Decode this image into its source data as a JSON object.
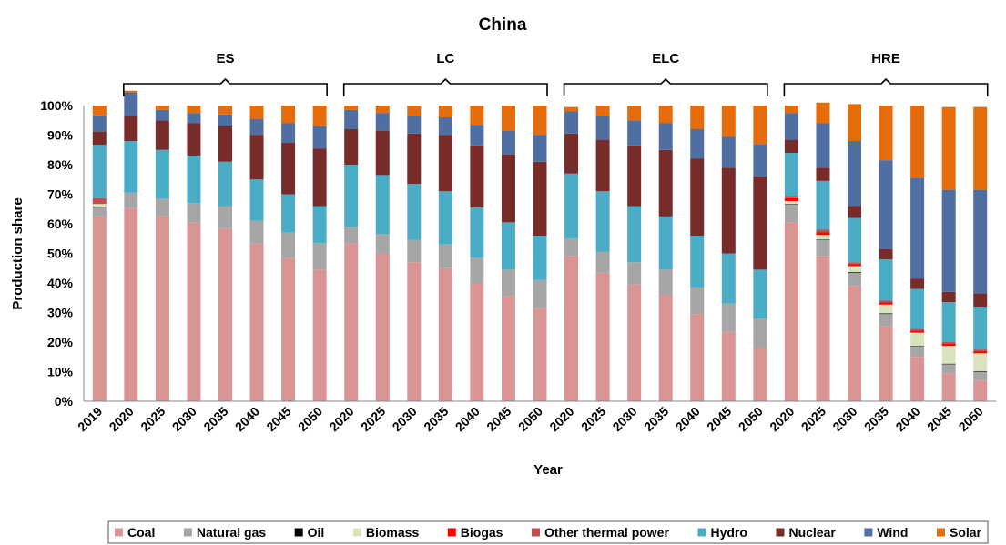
{
  "chart_data": {
    "type": "bar",
    "stacked": true,
    "title": "China",
    "xlabel": "Year",
    "ylabel": "Production share",
    "ylim": [
      0,
      100
    ],
    "yticks": [
      "0%",
      "10%",
      "20%",
      "30%",
      "40%",
      "50%",
      "60%",
      "70%",
      "80%",
      "90%",
      "100%"
    ],
    "grid": false,
    "legend_position": "bottom",
    "groups": [
      {
        "label": "ES",
        "start": 1,
        "end": 7
      },
      {
        "label": "LC",
        "start": 8,
        "end": 14
      },
      {
        "label": "ELC",
        "start": 15,
        "end": 21
      },
      {
        "label": "HRE",
        "start": 22,
        "end": 28
      }
    ],
    "categories": [
      "2019",
      "2020",
      "2025",
      "2030",
      "2035",
      "2040",
      "2045",
      "2050",
      "2020",
      "2025",
      "2030",
      "2035",
      "2040",
      "2045",
      "2050",
      "2020",
      "2025",
      "2030",
      "2035",
      "2040",
      "2045",
      "2050",
      "2020",
      "2025",
      "2030",
      "2035",
      "2040",
      "2045",
      "2050"
    ],
    "series": [
      {
        "name": "Coal",
        "color": "#d99594",
        "values": [
          62.5,
          65.5,
          62.5,
          60.5,
          58.5,
          53.5,
          48.5,
          44.5,
          53.5,
          50,
          47,
          45,
          40,
          35.5,
          31.5,
          49,
          43.5,
          39.5,
          36,
          29.5,
          23.5,
          18,
          60.5,
          49,
          39,
          25.5,
          15,
          9.5,
          7
        ]
      },
      {
        "name": "Natural gas",
        "color": "#a6a6a6",
        "values": [
          3,
          5,
          6,
          6.5,
          7.5,
          7.5,
          8.5,
          9,
          5.5,
          6.5,
          7.5,
          8,
          8.5,
          9,
          9.5,
          6,
          7,
          7.5,
          8.5,
          9,
          9.5,
          10,
          6,
          5.5,
          4.5,
          4,
          3.5,
          3,
          3
        ]
      },
      {
        "name": "Oil",
        "color": "#000000",
        "values": [
          0.2,
          0,
          0,
          0,
          0,
          0,
          0,
          0,
          0,
          0,
          0,
          0,
          0,
          0,
          0,
          0,
          0,
          0,
          0,
          0,
          0,
          0,
          0.2,
          0.2,
          0.2,
          0.2,
          0.2,
          0.2,
          0.2
        ]
      },
      {
        "name": "Biomass",
        "color": "#d8e4bc",
        "values": [
          1,
          0,
          0,
          0,
          0,
          0,
          0,
          0,
          0,
          0,
          0,
          0,
          0,
          0,
          0,
          0,
          0,
          0,
          0,
          0,
          0,
          0,
          1,
          1.5,
          2,
          3,
          4.5,
          6,
          6
        ]
      },
      {
        "name": "Biogas",
        "color": "#ff0000",
        "values": [
          0,
          0,
          0,
          0,
          0,
          0,
          0,
          0,
          0,
          0,
          0,
          0,
          0,
          0,
          0,
          0,
          0,
          0,
          0,
          0,
          0,
          0,
          1,
          1,
          0.7,
          0.7,
          0.7,
          0.7,
          0.7
        ]
      },
      {
        "name": "Other thermal power",
        "color": "#c0504d",
        "values": [
          2,
          0,
          0,
          0,
          0,
          0,
          0,
          0,
          0,
          0,
          0,
          0,
          0,
          0,
          0,
          0,
          0,
          0,
          0,
          0,
          0,
          0,
          0.8,
          0.8,
          0.6,
          0.6,
          0.6,
          0.6,
          0.6
        ]
      },
      {
        "name": "Hydro",
        "color": "#4bacc6",
        "values": [
          18,
          17.5,
          16.5,
          16,
          15,
          14,
          13,
          12.5,
          21,
          20,
          19,
          18,
          17,
          16,
          15,
          22,
          20.5,
          19,
          18,
          17.5,
          17,
          16.5,
          14.5,
          16.5,
          15,
          14,
          13.5,
          13.5,
          14.5
        ]
      },
      {
        "name": "Nuclear",
        "color": "#772c2a",
        "values": [
          4.5,
          8.5,
          10,
          11,
          12,
          15,
          17.5,
          19.5,
          12,
          15,
          17,
          19,
          21,
          23,
          25,
          13.5,
          17.5,
          20.5,
          22.5,
          26,
          29,
          31.5,
          4.5,
          4.5,
          4,
          3.5,
          3.5,
          3.5,
          4.5
        ]
      },
      {
        "name": "Wind",
        "color": "#4f6fa3",
        "values": [
          5.5,
          8,
          3.5,
          3.5,
          4,
          5.5,
          6.5,
          7.5,
          6.5,
          6,
          6,
          6,
          7,
          8,
          9,
          7.5,
          8,
          8.5,
          9,
          10,
          10.5,
          11,
          9,
          15,
          22,
          30,
          34,
          34.5,
          35
        ]
      },
      {
        "name": "Solar",
        "color": "#e46c0a",
        "values": [
          3.3,
          0.5,
          1.5,
          2.5,
          3,
          4.5,
          6,
          7,
          1.5,
          2.5,
          3.5,
          4,
          6.5,
          8.5,
          10,
          1.5,
          3.5,
          5,
          6,
          8,
          10.5,
          13,
          2.5,
          7,
          12.5,
          18.5,
          24.5,
          28,
          28
        ]
      }
    ]
  }
}
